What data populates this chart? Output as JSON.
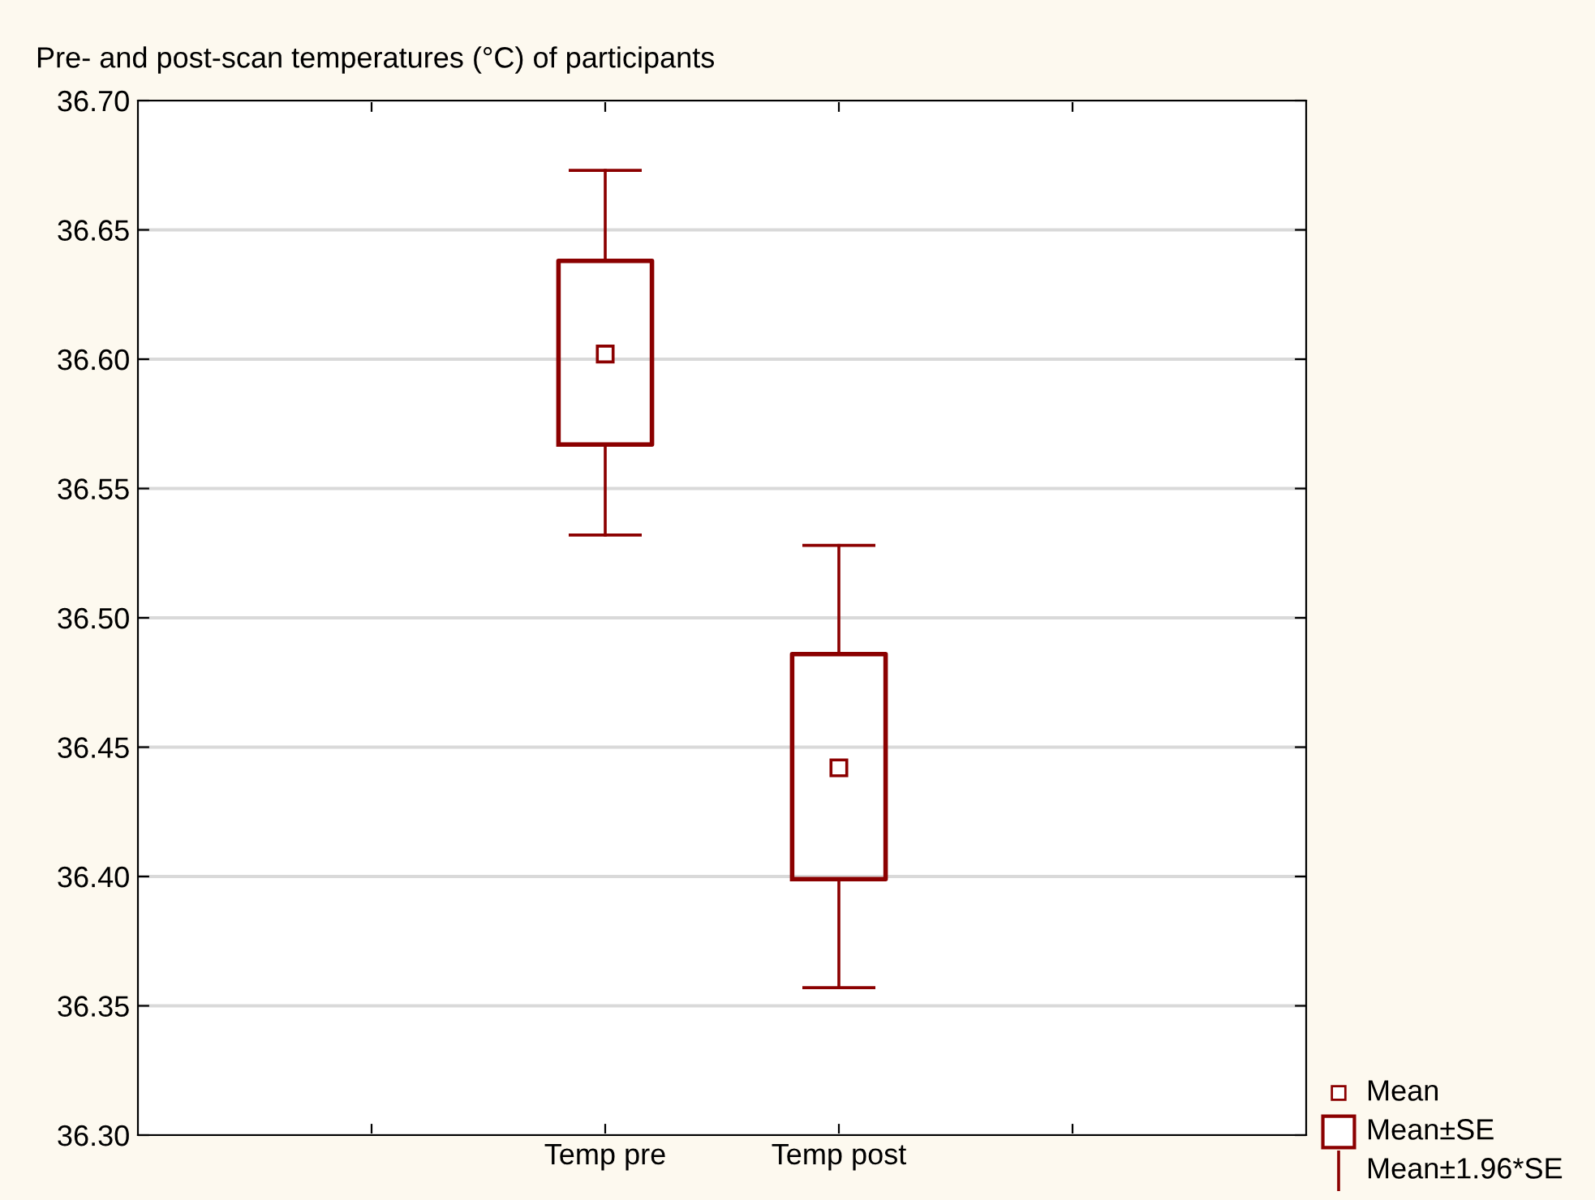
{
  "chart_data": {
    "type": "box",
    "title": "Pre- and post-scan temperatures (°C) of participants",
    "categories": [
      null,
      "Temp pre",
      "Temp post",
      null
    ],
    "boxes": [
      null,
      {
        "low": 36.532,
        "q1": 36.567,
        "median": 36.602,
        "q3": 36.638,
        "high": 36.673
      },
      {
        "low": 36.357,
        "q1": 36.399,
        "median": 36.442,
        "q3": 36.486,
        "high": 36.528
      },
      null
    ],
    "color": "#8b0000",
    "ylim": [
      36.3,
      36.7
    ],
    "yticks": [
      {
        "value": 36.3,
        "label": "36.30"
      },
      {
        "value": 36.35,
        "label": "36.35"
      },
      {
        "value": 36.4,
        "label": "36.40"
      },
      {
        "value": 36.45,
        "label": "36.45"
      },
      {
        "value": 36.5,
        "label": "36.50"
      },
      {
        "value": 36.55,
        "label": "36.55"
      },
      {
        "value": 36.6,
        "label": "36.60"
      },
      {
        "value": 36.65,
        "label": "36.65"
      },
      {
        "value": 36.7,
        "label": "36.70"
      }
    ],
    "grid": "y",
    "annotations": [
      "Mean",
      "Mean±SE",
      "Mean±1.96*SE"
    ]
  }
}
